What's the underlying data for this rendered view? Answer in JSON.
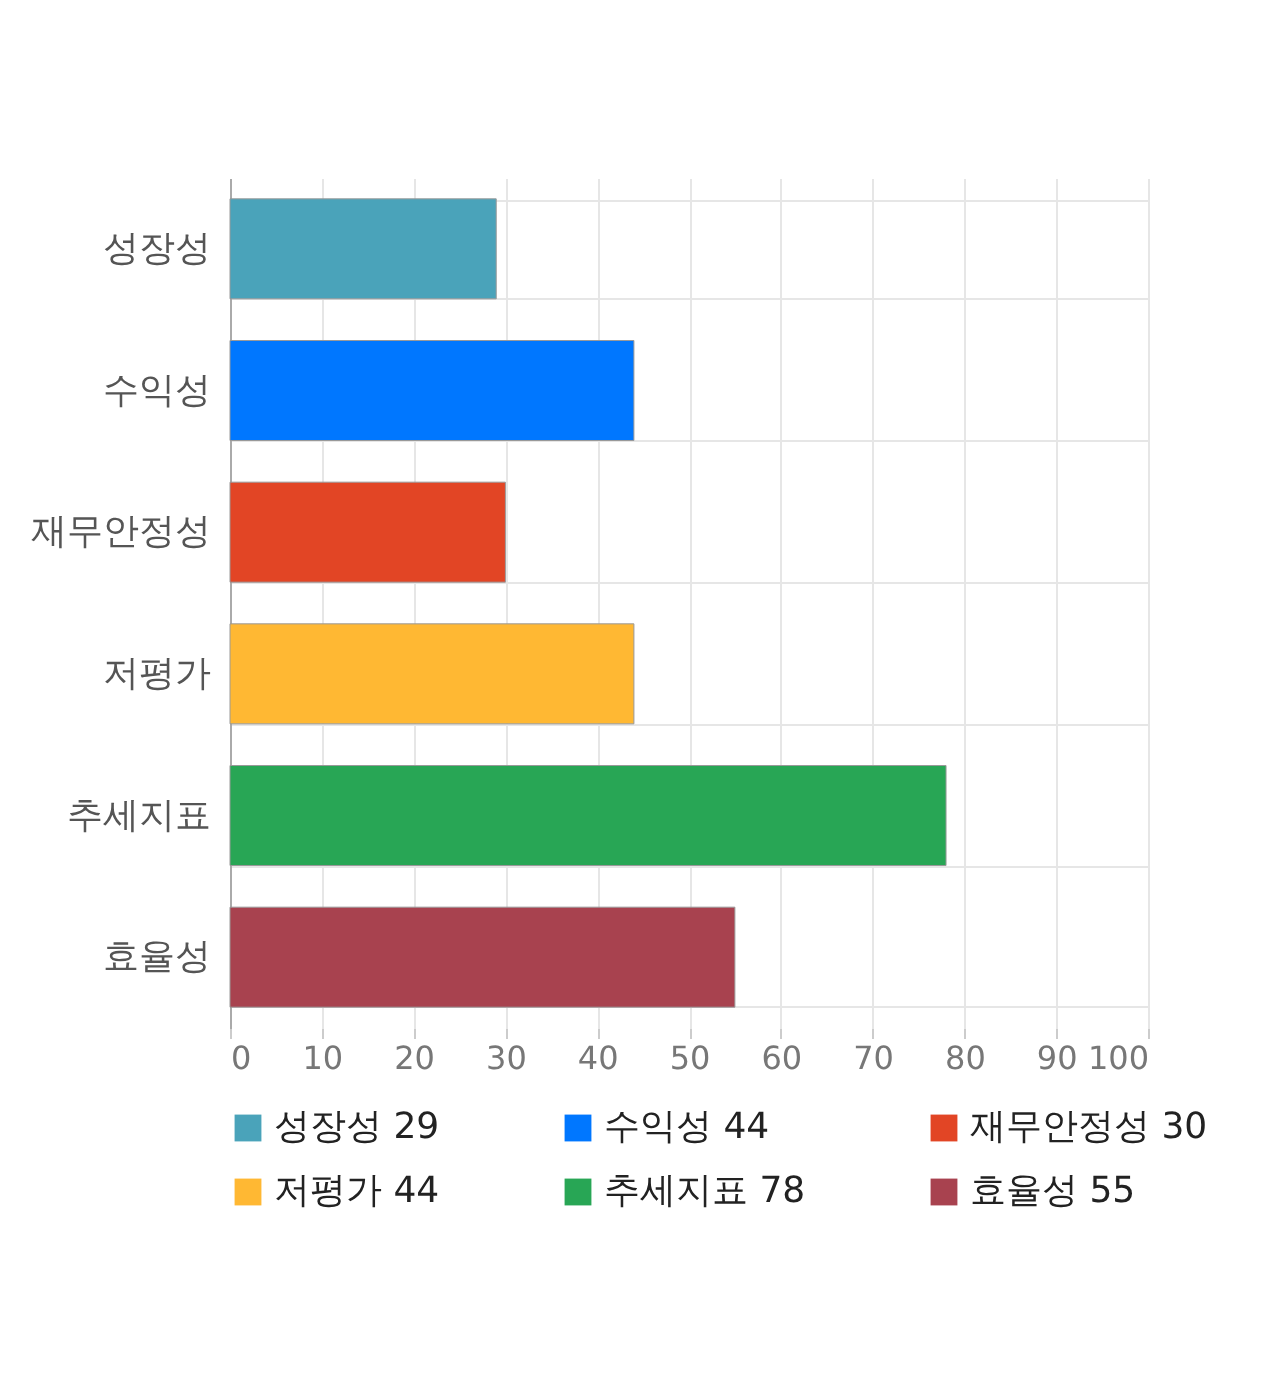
{
  "chart_data": {
    "type": "bar",
    "orientation": "horizontal",
    "categories": [
      "성장성",
      "수익성",
      "재무안정성",
      "저평가",
      "추세지표",
      "효율성"
    ],
    "series": [
      {
        "name": "성장성 29",
        "color": "#4aa3ba",
        "values": [
          29,
          null,
          null,
          null,
          null,
          null
        ]
      },
      {
        "name": "수익성 44",
        "color": "#0077ff",
        "values": [
          null,
          44,
          null,
          null,
          null,
          null
        ]
      },
      {
        "name": "재무안정성 30",
        "color": "#e24525",
        "values": [
          null,
          null,
          30,
          null,
          null,
          null
        ]
      },
      {
        "name": "저평가 44",
        "color": "#ffb833",
        "values": [
          null,
          null,
          null,
          44,
          null,
          null
        ]
      },
      {
        "name": "추세지표 78",
        "color": "#28a655",
        "values": [
          null,
          null,
          null,
          null,
          78,
          null
        ]
      },
      {
        "name": "효율성 55",
        "color": "#a8424f",
        "values": [
          null,
          null,
          null,
          null,
          null,
          55
        ]
      }
    ],
    "xlim": [
      0,
      100
    ],
    "xticks": [
      0,
      10,
      20,
      30,
      40,
      50,
      60,
      70,
      80,
      90,
      100
    ],
    "grid": true,
    "legend": "bottom"
  }
}
